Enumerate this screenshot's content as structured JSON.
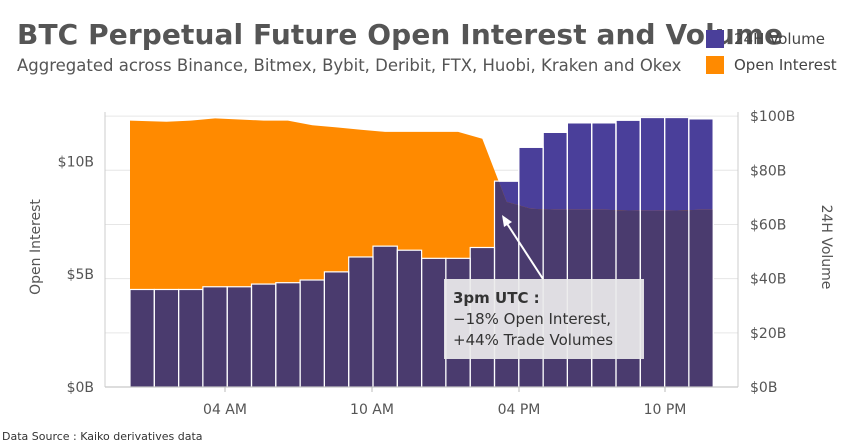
{
  "chart_data": {
    "type": "bar+area",
    "title": "BTC Perpetual Future Open Interest and Volume",
    "subtitle": "Aggregated across Binance, Bitmex, Bybit, Deribit, FTX, Huobi, Kraken and Okex",
    "source": "Data Source : Kaiko derivatives data",
    "legend": [
      {
        "label": "24H Volume",
        "color": "#4a3f9a"
      },
      {
        "label": "Open Interest",
        "color": "#ff8a00"
      }
    ],
    "x_ticks": [
      "04 AM",
      "10 AM",
      "04 PM",
      "10 PM"
    ],
    "left_axis": {
      "label": "Open Interest",
      "ticks": [
        "$0B",
        "$5B",
        "$10B"
      ],
      "unit": "$B",
      "range": [
        0,
        12.0
      ]
    },
    "right_axis": {
      "label": "24H Volume",
      "ticks": [
        "$0B",
        "$20B",
        "$40B",
        "$60B",
        "$80B",
        "$100B"
      ],
      "unit": "$B",
      "range": [
        0,
        100
      ]
    },
    "series": [
      {
        "name": "24H Volume",
        "axis": "right",
        "values": [
          36,
          36,
          36,
          37,
          37,
          38,
          38.5,
          39.5,
          42.5,
          48,
          52,
          50.5,
          47.5,
          47.5,
          51.5,
          76,
          88.5,
          94,
          97.5,
          97.5,
          98.5,
          99.5,
          99.5,
          99
        ]
      },
      {
        "name": "Open Interest",
        "axis": "left",
        "values": [
          11.8,
          11.75,
          11.8,
          11.9,
          11.85,
          11.8,
          11.8,
          11.6,
          11.5,
          11.4,
          11.3,
          11.3,
          11.3,
          11.3,
          11.0,
          8.2,
          7.9,
          7.85,
          7.85,
          7.85,
          7.82,
          7.8,
          7.82,
          7.85
        ]
      }
    ],
    "annotation": {
      "title": "3pm UTC :",
      "lines": [
        "−18% Open Interest,",
        "+44% Trade Volumes"
      ]
    }
  }
}
